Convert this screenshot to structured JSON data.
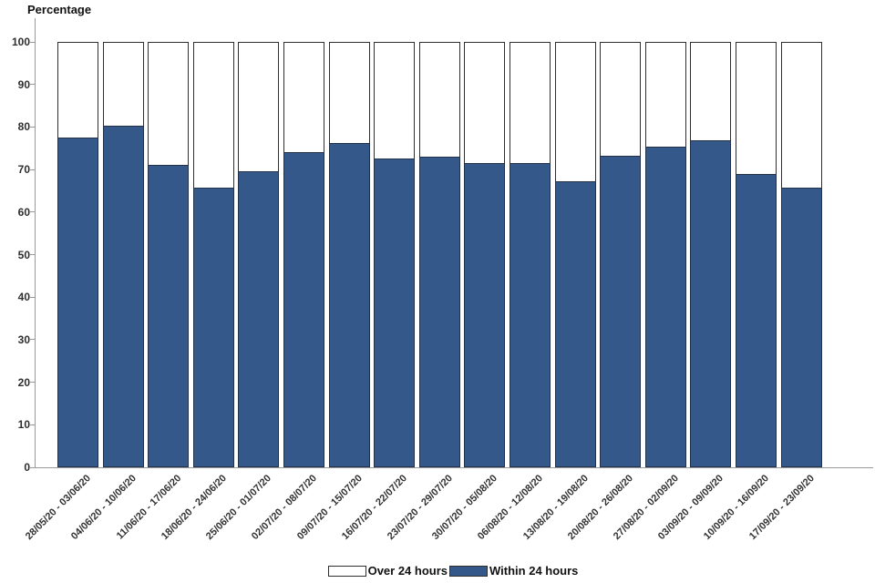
{
  "page": {
    "background_color": "#ffffff"
  },
  "chart_data": {
    "type": "bar",
    "stacked": true,
    "title": "",
    "ylabel": "Percentage",
    "xlabel": "",
    "ylim": [
      0,
      100
    ],
    "yticks": [
      0,
      10,
      20,
      30,
      40,
      50,
      60,
      70,
      80,
      90,
      100
    ],
    "grid": false,
    "legend_position": "bottom",
    "bar_outline_color": "#2e2e2e",
    "axis_color": "#9a9a9a",
    "categories": [
      "28/05/20 - 03/06/20",
      "04/06/20 - 10/06/20",
      "11/06/20 - 17/06/20",
      "18/06/20 - 24/06/20",
      "25/06/20 - 01/07/20",
      "02/07/20 - 08/07/20",
      "09/07/20 - 15/07/20",
      "16/07/20 - 22/07/20",
      "23/07/20 - 29/07/20",
      "30/07/20 - 05/08/20",
      "06/08/20 - 12/08/20",
      "13/08/20 - 19/08/20",
      "20/08/20 - 26/08/20",
      "27/08/20 - 02/09/20",
      "03/09/20 - 09/09/20",
      "10/09/20 - 16/09/20",
      "17/09/20 - 23/09/20"
    ],
    "series": [
      {
        "name": "Over 24 hours",
        "color": "#ffffff",
        "values": [
          22.5,
          19.6,
          29.0,
          34.3,
          30.4,
          25.9,
          23.7,
          27.5,
          27.0,
          28.4,
          28.4,
          32.7,
          26.8,
          24.6,
          23.2,
          31.0,
          34.3
        ]
      },
      {
        "name": "Within 24 hours",
        "color": "#35588a",
        "values": [
          77.5,
          80.4,
          71.0,
          65.7,
          69.6,
          74.1,
          76.3,
          72.5,
          73.0,
          71.6,
          71.6,
          67.3,
          73.2,
          75.4,
          76.8,
          69.0,
          65.7
        ]
      }
    ],
    "legend": {
      "entries": [
        {
          "label": "Over 24 hours",
          "color": "#ffffff"
        },
        {
          "label": "Within 24 hours",
          "color": "#35588a"
        }
      ]
    }
  }
}
